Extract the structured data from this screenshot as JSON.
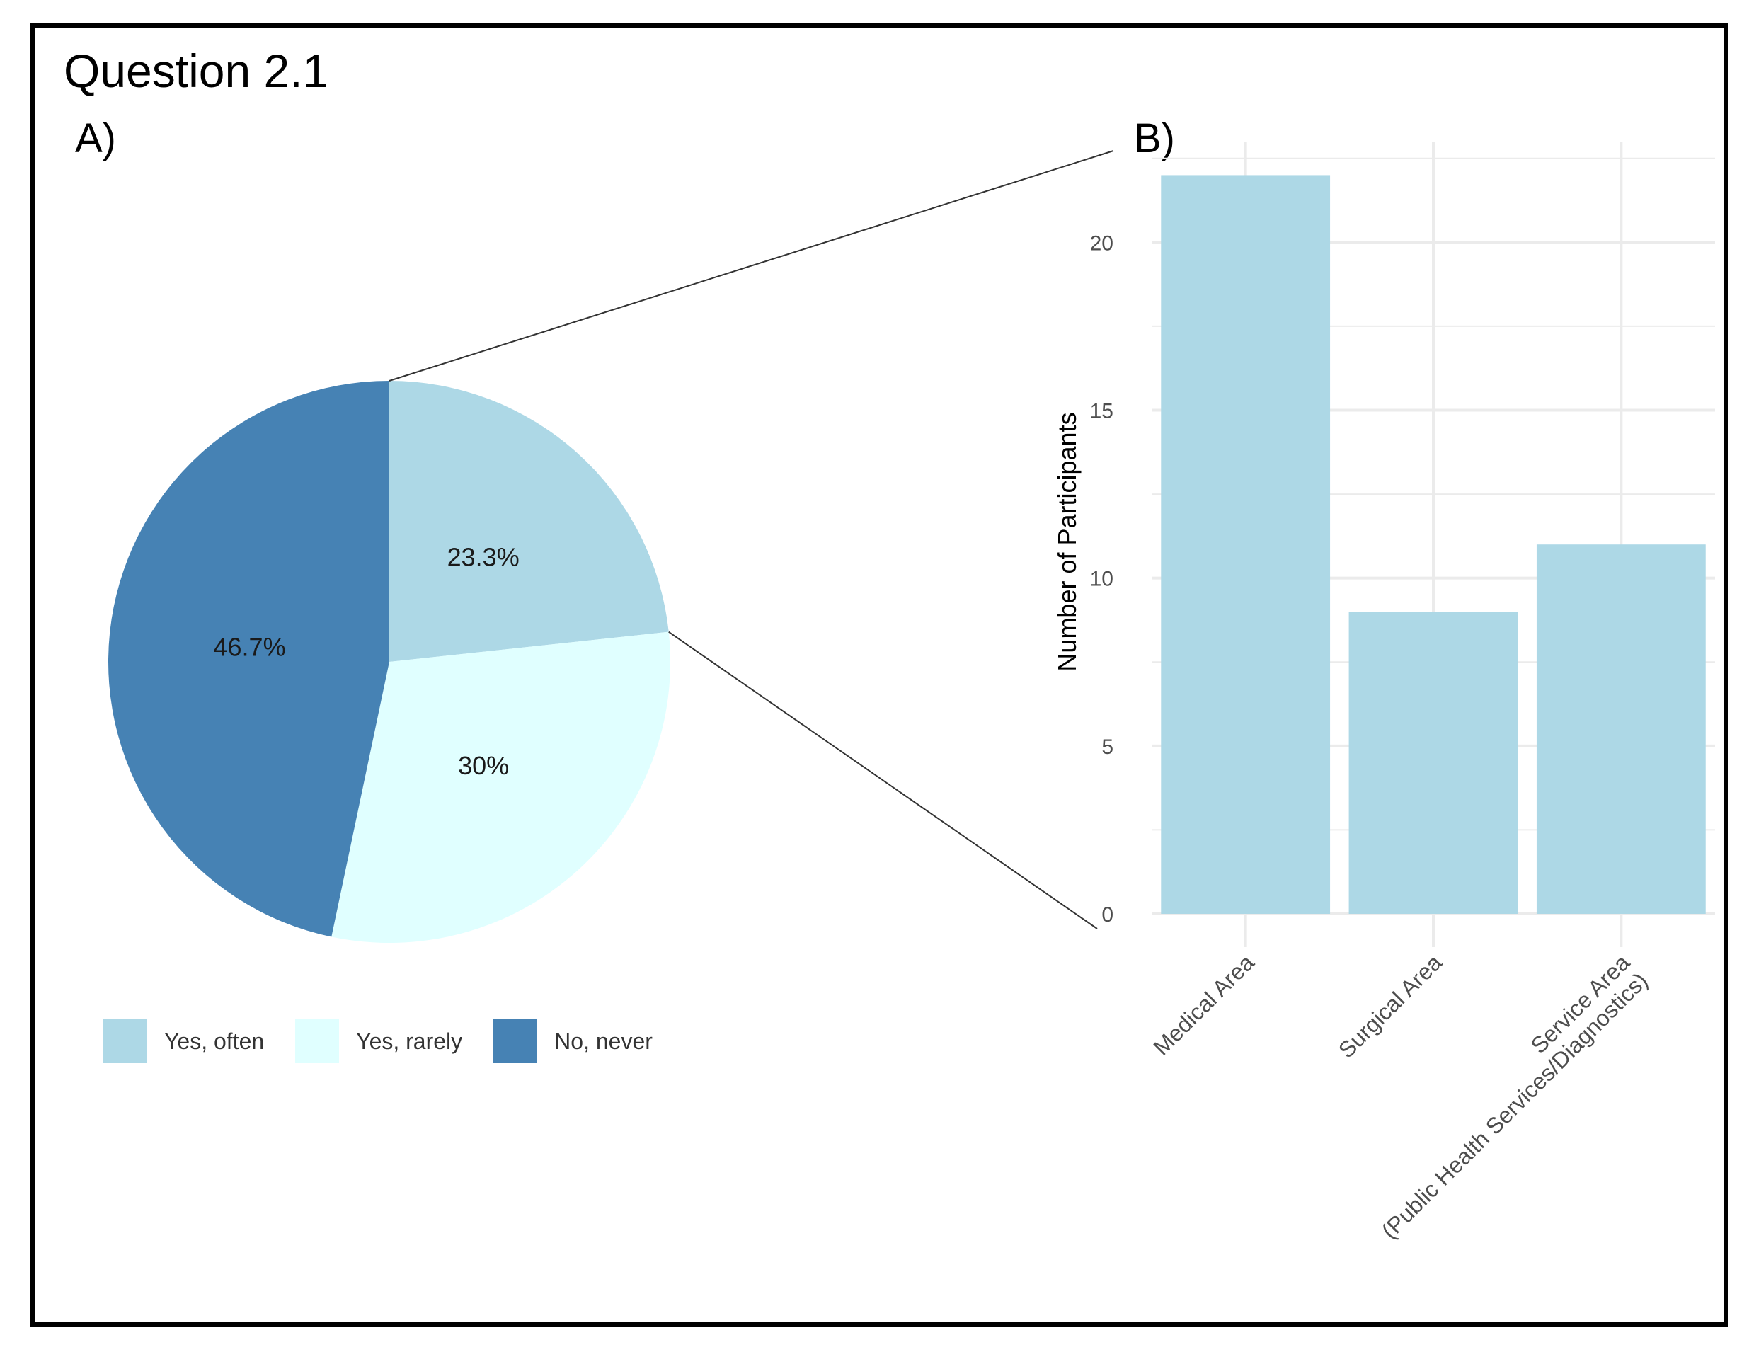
{
  "figure_title": "Question 2.1",
  "panels": {
    "a_label": "A)",
    "b_label": "B)"
  },
  "colors": {
    "yes_often": "#add8e6",
    "yes_rarely": "#e0ffff",
    "no_never": "#4682b4",
    "bar": "#add8e6",
    "grid": "#ebebeb",
    "text": "#000000",
    "axis_text": "#4d4d4d"
  },
  "chart_data": [
    {
      "type": "pie",
      "slices": [
        {
          "label": "Yes, often",
          "value": 23.3,
          "display": "23.3%",
          "color": "#add8e6"
        },
        {
          "label": "Yes, rarely",
          "value": 30,
          "display": "30%",
          "color": "#e0ffff"
        },
        {
          "label": "No, never",
          "value": 46.7,
          "display": "46.7%",
          "color": "#4682b4"
        }
      ],
      "legend_position": "bottom"
    },
    {
      "type": "bar",
      "title": "",
      "categories": [
        "Medical Area",
        "Surgical Area",
        "Service Area\n(Public Health Services/Diagnostics)"
      ],
      "values": [
        22,
        9,
        11
      ],
      "xlabel": "",
      "ylabel": "Number of Participants",
      "ylim": [
        0,
        23
      ],
      "yticks": [
        0,
        5,
        10,
        15,
        20
      ],
      "grid": true
    }
  ]
}
